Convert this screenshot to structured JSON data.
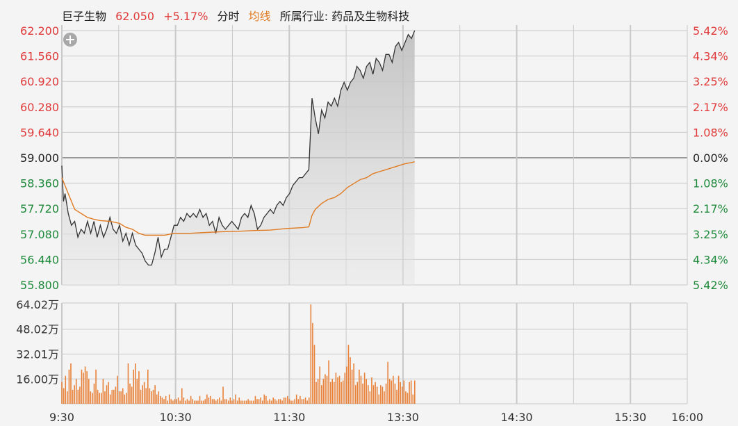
{
  "header": {
    "name": "巨子生物",
    "price": "62.050",
    "change": "+5.17%",
    "tab_minute": "分时",
    "tab_avg": "均线",
    "industry": "所属行业: 药品及生物科技"
  },
  "colors": {
    "up": "#e03a3a",
    "down": "#1f8a3b",
    "price_line": "#333333",
    "avg_line": "#e07b22",
    "volume_bar": "#e8823a",
    "grid": "#c8c8c8",
    "background": "#f4f4f4"
  },
  "chart_data": {
    "type": "line",
    "price_axis": {
      "ticks": [
        "62.200",
        "61.560",
        "60.920",
        "60.280",
        "59.640",
        "59.000",
        "58.360",
        "57.720",
        "57.080",
        "56.440",
        "55.800"
      ],
      "range": [
        55.8,
        62.2
      ],
      "prev_close": 59.0
    },
    "pct_axis": {
      "ticks": [
        "5.42%",
        "4.34%",
        "3.25%",
        "2.17%",
        "1.08%",
        "0.00%",
        "1.08%",
        "2.17%",
        "3.25%",
        "4.34%",
        "5.42%"
      ]
    },
    "volume_axis": {
      "ticks": [
        "64.02万",
        "48.02万",
        "32.01万",
        "16.00万"
      ],
      "max": 64.02
    },
    "time_axis": {
      "ticks": [
        "9:30",
        "10:30",
        "11:30",
        "13:30",
        "14:30",
        "15:30",
        "16:00"
      ],
      "session_minutes": 390
    },
    "price_points": [
      [
        0,
        58.8
      ],
      [
        1,
        57.9
      ],
      [
        2,
        58.1
      ],
      [
        4,
        57.6
      ],
      [
        6,
        57.3
      ],
      [
        8,
        57.4
      ],
      [
        10,
        57.0
      ],
      [
        12,
        57.2
      ],
      [
        14,
        57.1
      ],
      [
        16,
        57.4
      ],
      [
        18,
        57.1
      ],
      [
        20,
        57.4
      ],
      [
        22,
        57.0
      ],
      [
        24,
        57.3
      ],
      [
        26,
        57.0
      ],
      [
        28,
        57.2
      ],
      [
        30,
        57.5
      ],
      [
        32,
        57.2
      ],
      [
        34,
        57.1
      ],
      [
        36,
        57.3
      ],
      [
        38,
        56.9
      ],
      [
        40,
        57.1
      ],
      [
        42,
        56.8
      ],
      [
        44,
        57.1
      ],
      [
        46,
        56.8
      ],
      [
        48,
        56.7
      ],
      [
        50,
        56.6
      ],
      [
        52,
        56.4
      ],
      [
        54,
        56.3
      ],
      [
        56,
        56.3
      ],
      [
        58,
        56.6
      ],
      [
        60,
        57.0
      ],
      [
        62,
        56.5
      ],
      [
        64,
        56.7
      ],
      [
        66,
        56.7
      ],
      [
        68,
        57.0
      ],
      [
        70,
        57.3
      ],
      [
        72,
        57.3
      ],
      [
        74,
        57.5
      ],
      [
        76,
        57.4
      ],
      [
        78,
        57.6
      ],
      [
        80,
        57.5
      ],
      [
        82,
        57.6
      ],
      [
        84,
        57.5
      ],
      [
        86,
        57.7
      ],
      [
        88,
        57.5
      ],
      [
        90,
        57.6
      ],
      [
        92,
        57.3
      ],
      [
        94,
        57.4
      ],
      [
        96,
        57.1
      ],
      [
        98,
        57.5
      ],
      [
        100,
        57.3
      ],
      [
        102,
        57.2
      ],
      [
        104,
        57.3
      ],
      [
        106,
        57.4
      ],
      [
        108,
        57.3
      ],
      [
        110,
        57.2
      ],
      [
        112,
        57.5
      ],
      [
        114,
        57.6
      ],
      [
        116,
        57.5
      ],
      [
        118,
        57.8
      ],
      [
        120,
        57.6
      ],
      [
        122,
        57.2
      ],
      [
        124,
        57.3
      ],
      [
        126,
        57.5
      ],
      [
        128,
        57.6
      ],
      [
        130,
        57.7
      ],
      [
        132,
        57.6
      ],
      [
        134,
        57.8
      ],
      [
        136,
        57.9
      ],
      [
        138,
        57.8
      ],
      [
        140,
        58.0
      ],
      [
        142,
        58.1
      ],
      [
        144,
        58.3
      ],
      [
        146,
        58.4
      ],
      [
        148,
        58.5
      ],
      [
        150,
        58.5
      ],
      [
        152,
        58.6
      ],
      [
        154,
        58.7
      ],
      [
        156,
        60.5
      ],
      [
        158,
        60.0
      ],
      [
        160,
        59.6
      ],
      [
        162,
        60.2
      ],
      [
        164,
        60.0
      ],
      [
        166,
        60.4
      ],
      [
        168,
        60.3
      ],
      [
        170,
        60.5
      ],
      [
        172,
        60.3
      ],
      [
        174,
        60.7
      ],
      [
        176,
        60.9
      ],
      [
        178,
        60.7
      ],
      [
        180,
        60.9
      ],
      [
        182,
        61.0
      ],
      [
        184,
        61.3
      ],
      [
        186,
        61.2
      ],
      [
        188,
        61.0
      ],
      [
        190,
        61.3
      ],
      [
        192,
        61.4
      ],
      [
        194,
        61.1
      ],
      [
        196,
        61.5
      ],
      [
        198,
        61.4
      ],
      [
        200,
        61.2
      ],
      [
        202,
        61.6
      ],
      [
        204,
        61.6
      ],
      [
        206,
        61.4
      ],
      [
        208,
        61.8
      ],
      [
        210,
        61.9
      ],
      [
        212,
        61.7
      ],
      [
        214,
        61.9
      ],
      [
        216,
        62.1
      ],
      [
        218,
        62.0
      ],
      [
        220,
        62.2
      ]
    ],
    "avg_points": [
      [
        0,
        58.5
      ],
      [
        4,
        58.1
      ],
      [
        8,
        57.7
      ],
      [
        12,
        57.6
      ],
      [
        16,
        57.5
      ],
      [
        20,
        57.45
      ],
      [
        24,
        57.42
      ],
      [
        30,
        57.4
      ],
      [
        36,
        57.35
      ],
      [
        40,
        57.25
      ],
      [
        44,
        57.2
      ],
      [
        48,
        57.1
      ],
      [
        52,
        57.05
      ],
      [
        56,
        57.05
      ],
      [
        60,
        57.05
      ],
      [
        64,
        57.05
      ],
      [
        70,
        57.1
      ],
      [
        80,
        57.1
      ],
      [
        90,
        57.12
      ],
      [
        100,
        57.14
      ],
      [
        110,
        57.15
      ],
      [
        120,
        57.17
      ],
      [
        130,
        57.18
      ],
      [
        140,
        57.22
      ],
      [
        150,
        57.24
      ],
      [
        154,
        57.26
      ],
      [
        156,
        57.55
      ],
      [
        158,
        57.7
      ],
      [
        162,
        57.85
      ],
      [
        166,
        57.95
      ],
      [
        170,
        58.0
      ],
      [
        174,
        58.1
      ],
      [
        178,
        58.25
      ],
      [
        182,
        58.35
      ],
      [
        186,
        58.45
      ],
      [
        190,
        58.5
      ],
      [
        194,
        58.6
      ],
      [
        198,
        58.65
      ],
      [
        202,
        58.7
      ],
      [
        206,
        58.75
      ],
      [
        210,
        58.8
      ],
      [
        214,
        58.85
      ],
      [
        218,
        58.88
      ],
      [
        220,
        58.9
      ]
    ],
    "volume": [
      14,
      10,
      18,
      8,
      22,
      26,
      9,
      12,
      16,
      9,
      11,
      22,
      20,
      24,
      21,
      16,
      8,
      7,
      13,
      22,
      9,
      7,
      7,
      16,
      8,
      12,
      14,
      6,
      9,
      9,
      11,
      18,
      8,
      8,
      10,
      6,
      7,
      26,
      13,
      11,
      22,
      26,
      16,
      21,
      9,
      12,
      14,
      10,
      22,
      10,
      8,
      9,
      12,
      6,
      8,
      5,
      4,
      3,
      5,
      2,
      6,
      3,
      2,
      3,
      3,
      4,
      2,
      10,
      4,
      2,
      3,
      2,
      5,
      3,
      2,
      2,
      2,
      5,
      2,
      2,
      3,
      6,
      4,
      5,
      3,
      3,
      2,
      3,
      4,
      2,
      11,
      3,
      3,
      2,
      4,
      2,
      3,
      6,
      2,
      4,
      2,
      2,
      2,
      2,
      3,
      2,
      2,
      2,
      5,
      3,
      3,
      4,
      2,
      6,
      5,
      2,
      3,
      2,
      4,
      3,
      2,
      3,
      3,
      2,
      4,
      4,
      5,
      3,
      2,
      2,
      3,
      6,
      3,
      5,
      3,
      3,
      4,
      2,
      4,
      64,
      52,
      38,
      14,
      16,
      24,
      12,
      16,
      19,
      18,
      28,
      14,
      16,
      14,
      20,
      17,
      18,
      14,
      15,
      20,
      24,
      38,
      30,
      22,
      26,
      12,
      14,
      22,
      18,
      13,
      20,
      16,
      12,
      8,
      17,
      12,
      14,
      11,
      6,
      12,
      11,
      8,
      13,
      27,
      16,
      15,
      18,
      13,
      9,
      18,
      14,
      11,
      15,
      8,
      7,
      14,
      15,
      6,
      15
    ]
  }
}
